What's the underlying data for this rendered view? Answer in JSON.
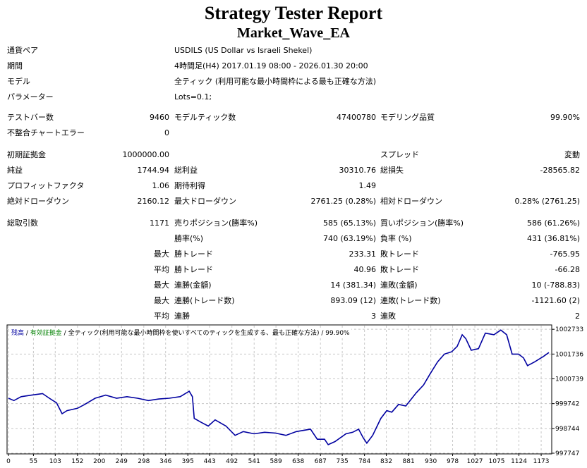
{
  "title": "Strategy Tester Report",
  "subtitle": "Market_Wave_EA",
  "info": [
    {
      "label": "通貨ペア",
      "value": "USDILS (US Dollar vs Israeli Shekel)"
    },
    {
      "label": "期間",
      "value": "4時間足(H4) 2017.01.19 08:00 - 2026.01.30 20:00"
    },
    {
      "label": "モデル",
      "value": "全ティック (利用可能な最小時間枠による最も正確な方法)"
    },
    {
      "label": "パラメーター",
      "value": "Lots=0.1;"
    }
  ],
  "stats": [
    [
      "テストバー数",
      "9460",
      "モデルティック数",
      "47400780",
      "モデリング品質",
      "99.90%"
    ],
    [
      "不整合チャートエラー",
      "0",
      "",
      "",
      "",
      ""
    ],
    [
      "初期証拠金",
      "1000000.00",
      "",
      "",
      "スプレッド",
      "変動"
    ],
    [
      "純益",
      "1744.94",
      "総利益",
      "30310.76",
      "総損失",
      "-28565.82"
    ],
    [
      "プロフィットファクタ",
      "1.06",
      "期待利得",
      "1.49",
      "",
      ""
    ],
    [
      "絶対ドローダウン",
      "2160.12",
      "最大ドローダウン",
      "2761.25 (0.28%)",
      "相対ドローダウン",
      "0.28% (2761.25)"
    ],
    [
      "総取引数",
      "1171",
      "売りポジション(勝率%)",
      "585 (65.13%)",
      "買いポジション(勝率%)",
      "586 (61.26%)"
    ],
    [
      "",
      "",
      "勝率(%)",
      "740 (63.19%)",
      "負率 (%)",
      "431 (36.81%)"
    ],
    [
      "",
      "最大",
      "勝トレード",
      "233.31",
      "敗トレード",
      "-765.95"
    ],
    [
      "",
      "平均",
      "勝トレード",
      "40.96",
      "敗トレード",
      "-66.28"
    ],
    [
      "",
      "最大",
      "連勝(金額)",
      "14 (381.34)",
      "連敗(金額)",
      "10 (-788.83)"
    ],
    [
      "",
      "最大",
      "連勝(トレード数)",
      "893.09 (12)",
      "連敗(トレード数)",
      "-1121.60 (2)"
    ],
    [
      "",
      "平均",
      "連勝",
      "3",
      "連敗",
      "2"
    ]
  ],
  "legend": {
    "balance": "残高",
    "equity": "有効証拠金",
    "model": "全ティック(利用可能な最小時間枠を使いすべてのティックを生成する、最も正確な方法)",
    "quality": "99.90%",
    "sep": " / "
  },
  "colors": {
    "balance": "#0000a0",
    "equity": "#008000",
    "grid": "#c8c8c8"
  },
  "chart_data": {
    "type": "line",
    "xlabel": "",
    "ylabel": "",
    "x_ticks": [
      0,
      55,
      103,
      152,
      200,
      249,
      298,
      346,
      395,
      443,
      492,
      541,
      589,
      638,
      687,
      735,
      784,
      832,
      881,
      930,
      978,
      1027,
      1075,
      1124,
      1173
    ],
    "y_ticks": [
      997747,
      998744,
      999742,
      1000739,
      1001736,
      1002733
    ],
    "xlim": [
      0,
      1190
    ],
    "ylim": [
      997747,
      1002880
    ],
    "series": [
      {
        "name": "残高",
        "x": [
          0,
          12,
          28,
          51,
          75,
          90,
          106,
          118,
          129,
          152,
          168,
          191,
          214,
          238,
          261,
          284,
          308,
          331,
          354,
          378,
          398,
          405,
          409,
          424,
          440,
          455,
          479,
          499,
          517,
          541,
          564,
          587,
          611,
          634,
          665,
          680,
          696,
          704,
          719,
          743,
          758,
          771,
          781,
          789,
          802,
          820,
          833,
          844,
          859,
          875,
          898,
          914,
          929,
          945,
          960,
          976,
          988,
          999,
          1007,
          1019,
          1035,
          1050,
          1069,
          1084,
          1097,
          1109,
          1123,
          1134,
          1143,
          1159,
          1178,
          1190
        ],
        "y": [
          999959,
          999866,
          1000022,
          1000084,
          1000146,
          999959,
          999772,
          999336,
          999461,
          999554,
          999710,
          999959,
          1000084,
          999959,
          1000022,
          999959,
          999866,
          999928,
          999959,
          1000022,
          1000240,
          1000022,
          999149,
          998993,
          998838,
          999087,
          998838,
          998464,
          998619,
          998526,
          998588,
          998557,
          998464,
          998619,
          998713,
          998308,
          998308,
          998090,
          998214,
          998526,
          998588,
          998713,
          998370,
          998152,
          998464,
          999149,
          999461,
          999398,
          999710,
          999648,
          1000177,
          1000489,
          1000956,
          1001424,
          1001735,
          1001829,
          1002047,
          1002514,
          1002359,
          1001891,
          1001954,
          1002577,
          1002514,
          1002701,
          1002514,
          1001735,
          1001735,
          1001580,
          1001268,
          1001424,
          1001642,
          1001798
        ]
      }
    ]
  }
}
